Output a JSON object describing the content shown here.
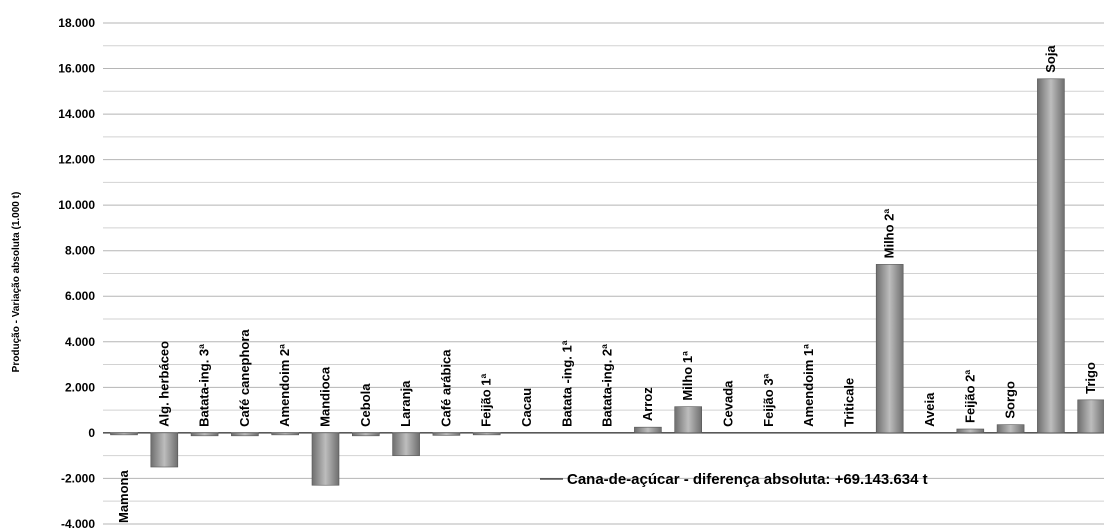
{
  "chart_data": {
    "type": "bar",
    "ylabel": "Produção - Variação absoluta (1.000 t)",
    "ylim": [
      -4000,
      18000
    ],
    "yticks": [
      -4000,
      -2000,
      0,
      2000,
      4000,
      6000,
      8000,
      10000,
      12000,
      14000,
      16000,
      18000
    ],
    "ytick_labels": [
      "-4.000",
      "-2.000",
      "0",
      "2.000",
      "4.000",
      "6.000",
      "8.000",
      "10.000",
      "12.000",
      "14.000",
      "16.000",
      "18.000"
    ],
    "grid": true,
    "categories": [
      "Mamona",
      "Alg. herbáceo",
      "Batata-ing. 3ª",
      "Café canephora",
      "Amendoim 2ª",
      "Mandioca",
      "Cebola",
      "Laranja",
      "Café arábica",
      "Feijão 1ª",
      "Cacau",
      "Batata -ing. 1ª",
      "Batata-ing. 2ª",
      "Arroz",
      "Milho 1ª",
      "Cevada",
      "Feijão 3ª",
      "Amendoim 1ª",
      "Triticale",
      "Milho 2ª",
      "Aveia",
      "Feijão 2ª",
      "Sorgo",
      "Soja",
      "Trigo"
    ],
    "values": [
      -30,
      -1500,
      -130,
      -130,
      -50,
      -2300,
      -130,
      -1000,
      -110,
      -60,
      0,
      0,
      0,
      250,
      1150,
      0,
      0,
      0,
      0,
      7400,
      0,
      170,
      360,
      15550,
      1450
    ],
    "bar_color": "#808080",
    "annotation": "Cana-de-açúcar - diferença absoluta: +69.143.634 t"
  }
}
